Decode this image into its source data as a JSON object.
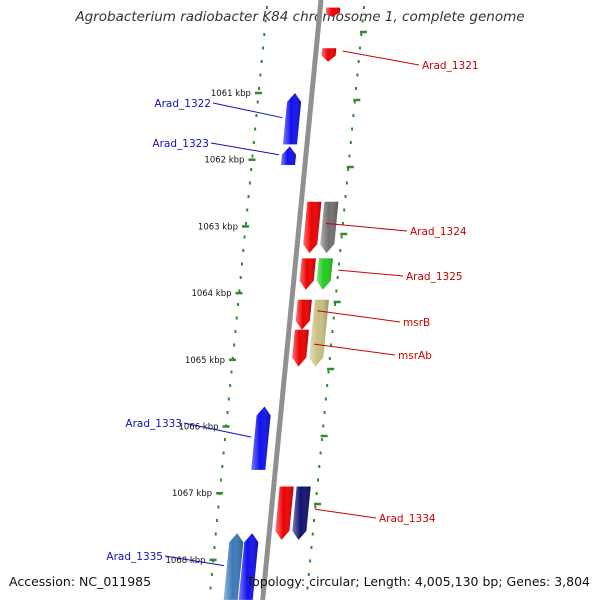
{
  "title": "Agrobacterium radiobacter K84 chromosome 1, complete genome",
  "footer": {
    "accession": "Accession: NC_011985",
    "summary": "Topology: circular; Length: 4,005,130 bp; Genes: 3,804"
  },
  "colors": {
    "backbone": "#909090",
    "tick": "#2e8b2e",
    "forward_label": "#1111bb",
    "reverse_label": "#cc0000",
    "gene_red": "#ee0000",
    "gene_blue": "#1010ee",
    "gene_gray": "#707070",
    "gene_green": "#22cc22",
    "gene_khaki": "#c8c080",
    "gene_navy": "#101070",
    "gene_steel": "#3a7ab8"
  },
  "axis": {
    "unit": "kbp",
    "ticks": [
      {
        "label": "1061 kbp",
        "kbp": 1061
      },
      {
        "label": "1062 kbp",
        "kbp": 1062
      },
      {
        "label": "1063 kbp",
        "kbp": 1063
      },
      {
        "label": "1064 kbp",
        "kbp": 1064
      },
      {
        "label": "1065 kbp",
        "kbp": 1065
      },
      {
        "label": "1066 kbp",
        "kbp": 1066
      },
      {
        "label": "1067 kbp",
        "kbp": 1067
      },
      {
        "label": "1068 kbp",
        "kbp": 1068
      }
    ]
  },
  "genes": [
    {
      "id": "g0",
      "label": "",
      "strand": "reverse",
      "ring": 1,
      "start": 1059.72,
      "end": 1059.86,
      "color": "gene_red"
    },
    {
      "id": "g1",
      "label": "Arad_1321",
      "strand": "reverse",
      "ring": 1,
      "start": 1060.33,
      "end": 1060.53,
      "color": "gene_red"
    },
    {
      "id": "g2",
      "label": "Arad_1322",
      "strand": "forward",
      "ring": 1,
      "start": 1061.0,
      "end": 1061.77,
      "color": "gene_blue"
    },
    {
      "id": "g3",
      "label": "Arad_1323",
      "strand": "forward",
      "ring": 1,
      "start": 1061.8,
      "end": 1062.08,
      "color": "gene_blue"
    },
    {
      "id": "g4",
      "label": "Arad_1324",
      "strand": "reverse",
      "ring": 1,
      "start": 1062.63,
      "end": 1063.4,
      "color": "gene_red"
    },
    {
      "id": "g5",
      "label": "",
      "strand": "reverse",
      "ring": 2,
      "start": 1062.63,
      "end": 1063.4,
      "color": "gene_gray"
    },
    {
      "id": "g6",
      "label": "",
      "strand": "reverse",
      "ring": 1,
      "start": 1063.48,
      "end": 1063.95,
      "color": "gene_red"
    },
    {
      "id": "g7",
      "label": "Arad_1325",
      "strand": "reverse",
      "ring": 2,
      "start": 1063.48,
      "end": 1063.95,
      "color": "gene_green"
    },
    {
      "id": "g8",
      "label": "msrB",
      "strand": "reverse",
      "ring": 1,
      "start": 1064.1,
      "end": 1064.55,
      "color": "gene_red"
    },
    {
      "id": "g9",
      "label": "msrAb",
      "strand": "reverse",
      "ring": 1,
      "start": 1064.55,
      "end": 1065.1,
      "color": "gene_red"
    },
    {
      "id": "g10",
      "label": "",
      "strand": "reverse",
      "ring": 2,
      "start": 1064.1,
      "end": 1065.1,
      "color": "gene_khaki"
    },
    {
      "id": "g11",
      "label": "Arad_1333",
      "strand": "forward",
      "ring": 1,
      "start": 1065.7,
      "end": 1066.65,
      "color": "gene_blue"
    },
    {
      "id": "g12",
      "label": "",
      "strand": "reverse",
      "ring": 1,
      "start": 1066.9,
      "end": 1067.7,
      "color": "gene_red"
    },
    {
      "id": "g13",
      "label": "Arad_1334",
      "strand": "reverse",
      "ring": 2,
      "start": 1066.9,
      "end": 1067.7,
      "color": "gene_navy"
    },
    {
      "id": "g14",
      "label": "",
      "strand": "forward",
      "ring": 1,
      "start": 1067.6,
      "end": 1068.6,
      "color": "gene_blue"
    },
    {
      "id": "g15",
      "label": "Arad_1335",
      "strand": "forward",
      "ring": 2,
      "start": 1067.6,
      "end": 1068.6,
      "color": "gene_steel"
    }
  ]
}
